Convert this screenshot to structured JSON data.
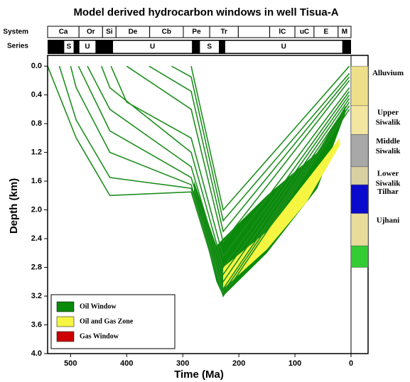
{
  "chart_data": {
    "type": "line",
    "title": "Model derived hydrocarbon windows in well Tisua-A",
    "xlabel": "Time (Ma)",
    "ylabel": "Depth (km)",
    "xlim": [
      541,
      0
    ],
    "ylim": [
      -0.15,
      4.0
    ],
    "xticks": [
      500,
      400,
      300,
      200,
      100,
      0
    ],
    "yticks": [
      {
        "value": 0,
        "label": "0.0"
      },
      0.4,
      0.8,
      1.2,
      1.6,
      {
        "value": 2,
        "label": "2.0"
      },
      2.4,
      2.8,
      3.2,
      3.6,
      {
        "value": 4,
        "label": "4.0"
      }
    ],
    "horizon_color": "#1f8f1f",
    "horizons": [
      {
        "x": [
          541,
          490,
          430,
          285,
          228,
          3
        ],
        "values": [
          0,
          1.0,
          1.8,
          1.75,
          3.2,
          0.6
        ]
      },
      {
        "x": [
          520,
          490,
          430,
          285,
          228,
          3
        ],
        "values": [
          0,
          0.75,
          1.55,
          1.7,
          3.15,
          0.55
        ]
      },
      {
        "x": [
          500,
          490,
          430,
          285,
          228,
          3
        ],
        "values": [
          0,
          0.3,
          1.2,
          1.65,
          3.1,
          0.5
        ]
      },
      {
        "x": [
          486,
          430,
          285,
          228,
          3
        ],
        "values": [
          0,
          0.9,
          1.55,
          3.0,
          0.45
        ]
      },
      {
        "x": [
          470,
          430,
          285,
          228,
          3
        ],
        "values": [
          0,
          0.6,
          1.4,
          2.9,
          0.4
        ]
      },
      {
        "x": [
          445,
          430,
          285,
          228,
          3
        ],
        "values": [
          0,
          0.3,
          1.2,
          2.8,
          0.35
        ]
      },
      {
        "x": [
          428,
          400,
          285,
          228,
          3
        ],
        "values": [
          0,
          0.5,
          1.0,
          2.65,
          0.3
        ]
      },
      {
        "x": [
          400,
          285,
          228,
          3
        ],
        "values": [
          0,
          0.6,
          2.45,
          0.2
        ]
      },
      {
        "x": [
          360,
          285,
          228,
          3
        ],
        "values": [
          0,
          0.35,
          2.3,
          0.15
        ]
      },
      {
        "x": [
          320,
          285,
          228,
          3
        ],
        "values": [
          0,
          0.15,
          2.15,
          0.1
        ]
      },
      {
        "x": [
          285,
          228,
          3
        ],
        "values": [
          0,
          2.0,
          0
        ]
      }
    ],
    "zones": [
      {
        "name": "Oil Window",
        "color": "#0a8a0a",
        "x": [
          280,
          240,
          228,
          150,
          60,
          10
        ],
        "top": [
          1.6,
          2.5,
          2.4,
          1.8,
          1.2,
          0.55
        ],
        "bottom": [
          1.75,
          3.0,
          3.2,
          2.6,
          1.7,
          0.65
        ]
      },
      {
        "name": "Oil and Gas Zone",
        "color": "#f5f542",
        "x": [
          228,
          150,
          80,
          20
        ],
        "top": [
          2.8,
          2.3,
          1.6,
          1.0
        ],
        "bottom": [
          3.1,
          2.55,
          1.9,
          1.1
        ]
      },
      {
        "name": "Gas Window",
        "color": "#cc0000",
        "x": [],
        "top": [],
        "bottom": []
      }
    ],
    "system_label": "System",
    "series_label": "Series",
    "systems": [
      {
        "label": "Ca",
        "start": 541,
        "end": 485
      },
      {
        "label": "Or",
        "start": 485,
        "end": 443
      },
      {
        "label": "Si",
        "start": 443,
        "end": 419
      },
      {
        "label": "De",
        "start": 419,
        "end": 359
      },
      {
        "label": "Cb",
        "start": 359,
        "end": 299
      },
      {
        "label": "Pe",
        "start": 299,
        "end": 252
      },
      {
        "label": "Tr",
        "start": 252,
        "end": 201
      },
      {
        "label": null,
        "start": 201,
        "end": 145
      },
      {
        "label": "lC",
        "start": 145,
        "end": 100
      },
      {
        "label": "uC",
        "start": 100,
        "end": 66
      },
      {
        "label": "E",
        "start": 66,
        "end": 23
      },
      {
        "label": "M",
        "start": 23,
        "end": 0
      }
    ],
    "epochs": [
      {
        "label": "S",
        "start": 512,
        "end": 494
      },
      {
        "label": "U",
        "start": 485,
        "end": 455
      },
      {
        "label": "U",
        "start": 425,
        "end": 283
      },
      {
        "label": "S",
        "start": 270,
        "end": 235
      },
      {
        "label": "U",
        "start": 225,
        "end": 15
      }
    ],
    "lithology": [
      {
        "label": [
          "Alluvium"
        ],
        "top": 0,
        "bottom": 0.55,
        "color": "#eee08a"
      },
      {
        "label": [
          "Upper",
          "Siwalik"
        ],
        "top": 0.55,
        "bottom": 0.95,
        "color": "#f2e6a0"
      },
      {
        "label": [
          "Middle",
          "Siwalik"
        ],
        "top": 0.95,
        "bottom": 1.4,
        "color": "#a8a8a8"
      },
      {
        "label": [
          "Lower",
          "Siwalik"
        ],
        "top": 1.4,
        "bottom": 1.65,
        "color": "#d8d0a0"
      },
      {
        "label": [
          "Tilhar"
        ],
        "top": 1.65,
        "bottom": 2.05,
        "color": "#0a0acc"
      },
      {
        "label": [
          "Ujhani"
        ],
        "top": 2.05,
        "bottom": 2.5,
        "color": "#e8dc9a"
      },
      {
        "label": null,
        "top": 2.5,
        "bottom": 2.8,
        "color": "#33cc33"
      }
    ]
  }
}
